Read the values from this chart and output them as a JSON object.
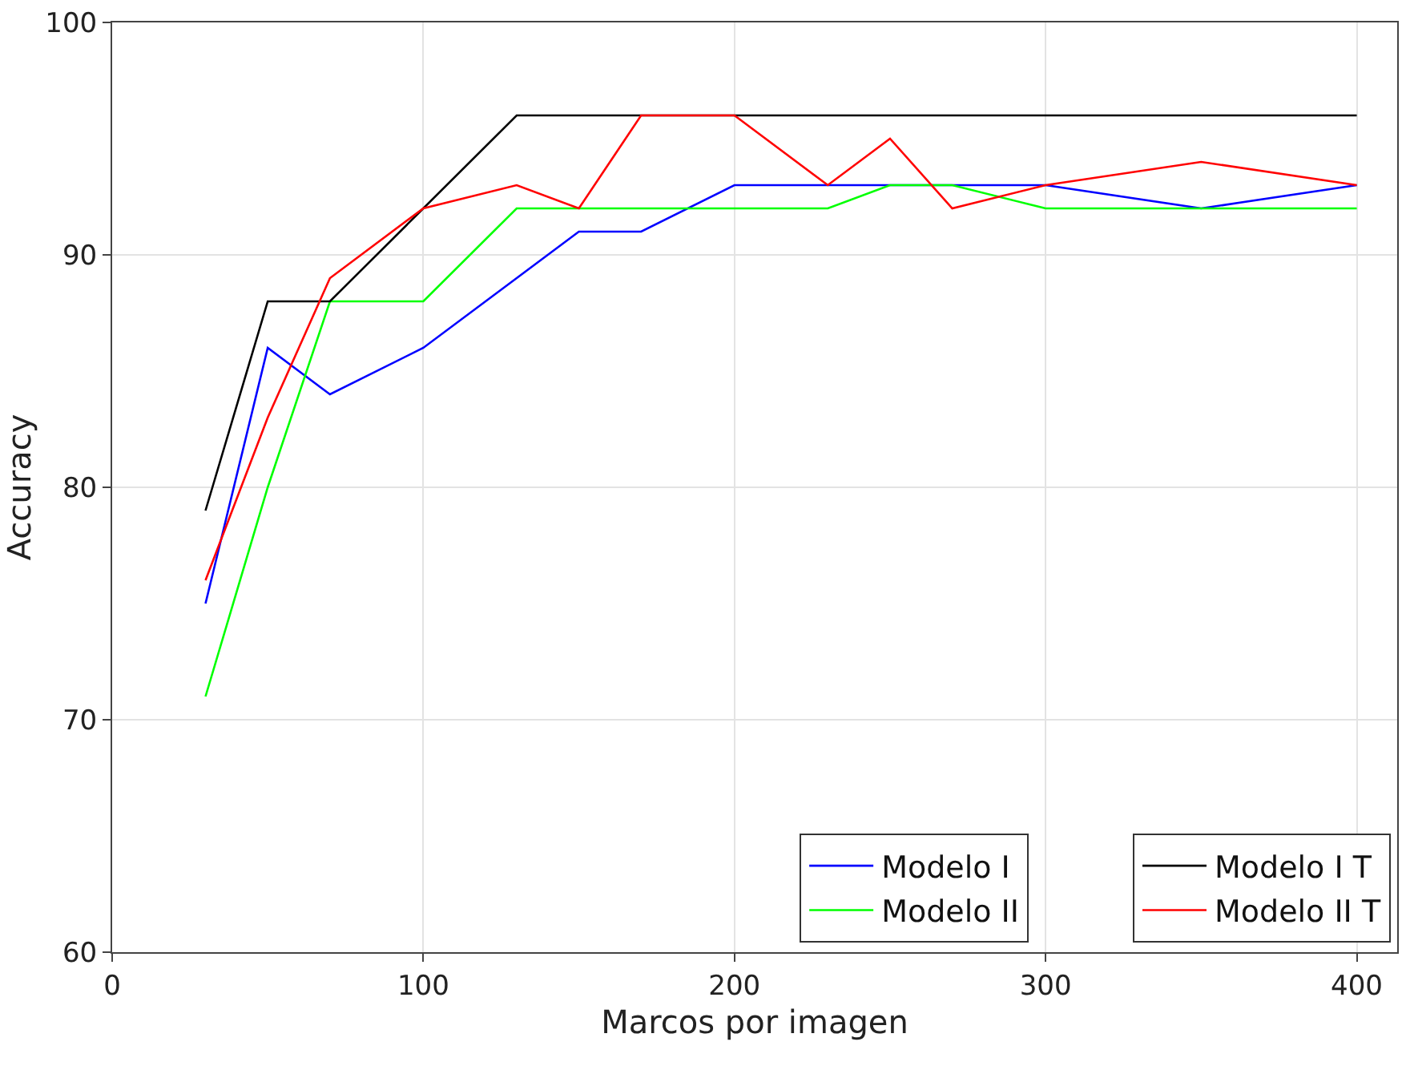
{
  "chart_data": {
    "type": "line",
    "xlabel": "Marcos por imagen",
    "ylabel": "Accuracy",
    "x": [
      30,
      50,
      70,
      100,
      130,
      150,
      170,
      200,
      230,
      250,
      270,
      300,
      350,
      400
    ],
    "series": [
      {
        "name": "Modelo I",
        "color": "#0000ff",
        "values": [
          75,
          86,
          84,
          86,
          89,
          91,
          91,
          93,
          93,
          93,
          93,
          93,
          92,
          93
        ]
      },
      {
        "name": "Modelo II",
        "color": "#00ff00",
        "values": [
          71,
          80,
          88,
          88,
          92,
          92,
          92,
          92,
          92,
          93,
          93,
          92,
          92,
          92
        ]
      },
      {
        "name": "Modelo I T",
        "color": "#000000",
        "values": [
          79,
          88,
          88,
          92,
          96,
          96,
          96,
          96,
          96,
          96,
          96,
          96,
          96,
          96
        ]
      },
      {
        "name": "Modelo II T",
        "color": "#ff0000",
        "values": [
          76,
          83,
          89,
          92,
          93,
          92,
          96,
          96,
          93,
          95,
          92,
          93,
          94,
          93
        ]
      }
    ],
    "xlim": [
      0,
      413
    ],
    "xticks": [
      0,
      100,
      200,
      300,
      400
    ],
    "ylim": [
      60,
      100
    ],
    "yticks": [
      60,
      70,
      80,
      90,
      100
    ],
    "grid": true,
    "legend": "bottom right",
    "marker": "none",
    "line_style": "solid"
  }
}
